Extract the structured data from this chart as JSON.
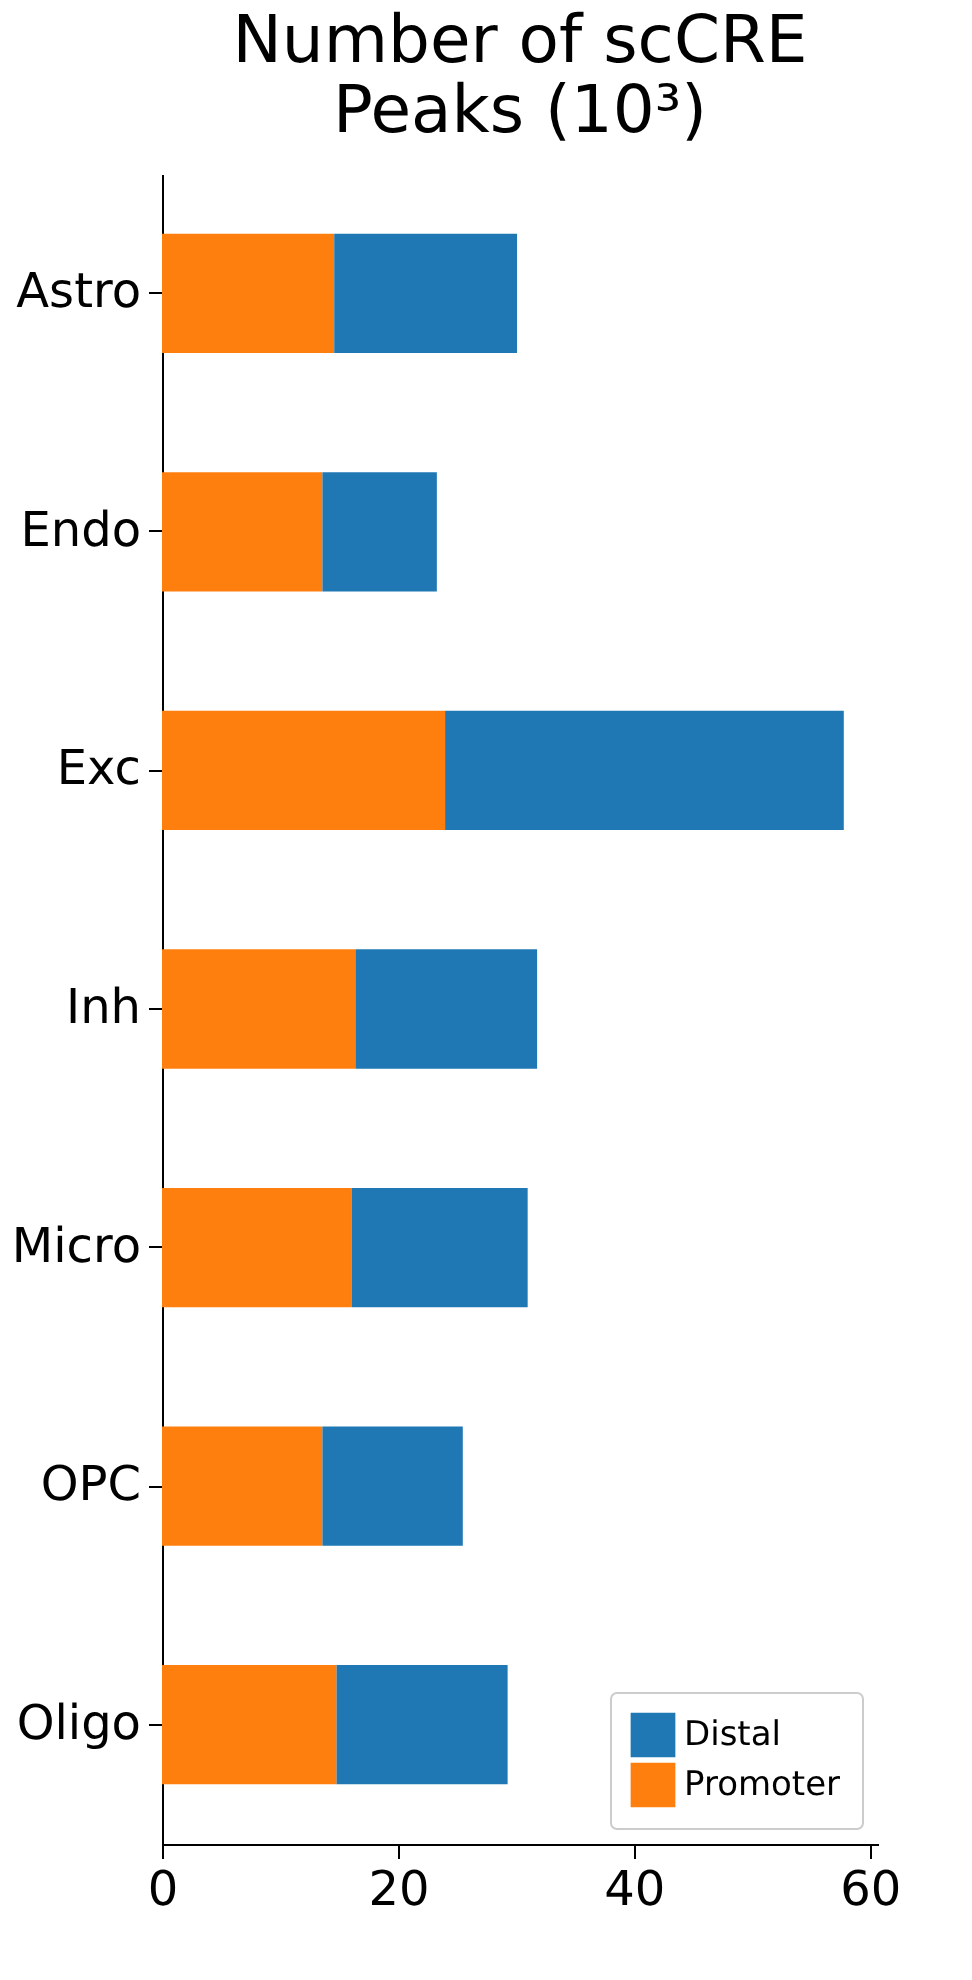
{
  "chart_data": {
    "type": "bar",
    "orientation": "horizontal",
    "stacked": true,
    "title": "Number of scCRE Peaks (10³)",
    "categories": [
      "Astro",
      "Endo",
      "Exc",
      "Inh",
      "Micro",
      "OPC",
      "Oligo"
    ],
    "series": [
      {
        "name": "Promoter",
        "color": "#ff7f0e",
        "values": [
          14.6,
          13.6,
          24.0,
          16.4,
          16.1,
          13.6,
          14.8
        ]
      },
      {
        "name": "Distal",
        "color": "#1f77b4",
        "values": [
          15.5,
          9.7,
          33.8,
          15.4,
          14.9,
          11.9,
          14.5
        ]
      }
    ],
    "xlim": [
      0,
      60.7
    ],
    "xticks": [
      0,
      20,
      40,
      60
    ],
    "legend": "bottom right",
    "grid": false
  }
}
